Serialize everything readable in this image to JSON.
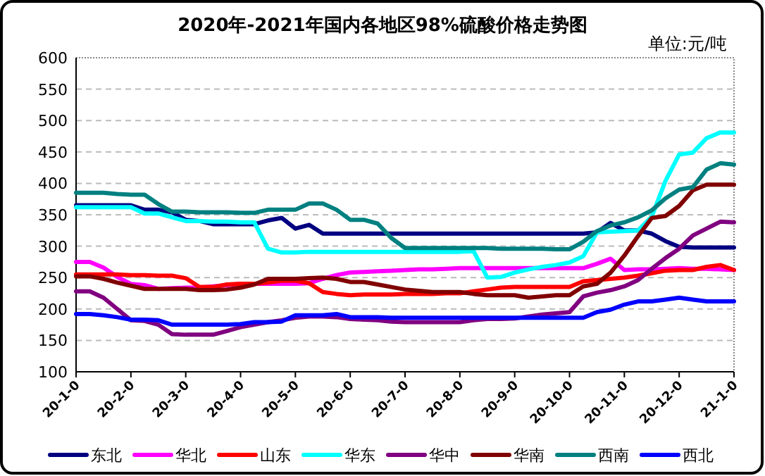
{
  "chart_data": {
    "type": "line",
    "title": "2020年-2021年国内各地区98%硫酸价格走势图",
    "annotations": [
      "单位:元/吨"
    ],
    "categories": [
      "20-1-0",
      null,
      null,
      null,
      "20-2-0",
      null,
      null,
      null,
      "20-3-0",
      null,
      null,
      null,
      "20-4-0",
      null,
      null,
      null,
      "20-5-0",
      null,
      null,
      null,
      "20-6-0",
      null,
      null,
      null,
      "20-7-0",
      null,
      null,
      null,
      "20-8-0",
      null,
      null,
      null,
      "20-9-0",
      null,
      null,
      null,
      "20-10-0",
      null,
      null,
      null,
      "20-11-0",
      null,
      null,
      null,
      "20-12-0",
      null,
      null,
      null,
      "21-1-0"
    ],
    "ylim": [
      100,
      600
    ],
    "yticks": [
      100,
      150,
      200,
      250,
      300,
      350,
      400,
      450,
      500,
      550,
      600
    ],
    "grid": "y",
    "legend": "bottom",
    "marker": "none",
    "line_style": "solid",
    "series": [
      {
        "name": "东北",
        "color": "#000080",
        "values": [
          365,
          365,
          365,
          365,
          365,
          358,
          358,
          354,
          342,
          340,
          335,
          335,
          335,
          335,
          341,
          345,
          328,
          334,
          320,
          320,
          320,
          320,
          320,
          320,
          320,
          320,
          320,
          320,
          320,
          320,
          320,
          320,
          320,
          320,
          320,
          320,
          320,
          320,
          322,
          337,
          325,
          325,
          320,
          308,
          299,
          298,
          298,
          298,
          298
        ]
      },
      {
        "name": "华北",
        "color": "#ff00ff",
        "values": [
          275,
          275,
          266,
          251,
          240,
          238,
          232,
          233,
          234,
          234,
          236,
          238,
          240,
          240,
          240,
          240,
          240,
          241,
          248,
          254,
          258,
          259,
          260,
          261,
          262,
          263,
          263,
          264,
          265,
          265,
          265,
          265,
          265,
          265,
          265,
          265,
          265,
          265,
          272,
          280,
          262,
          263,
          263,
          264,
          265,
          264,
          264,
          263,
          262
        ]
      },
      {
        "name": "山东",
        "color": "#ff0000",
        "values": [
          255,
          255,
          255,
          255,
          254,
          254,
          253,
          253,
          249,
          235,
          235,
          239,
          240,
          240,
          242,
          245,
          245,
          241,
          227,
          224,
          222,
          223,
          223,
          223,
          224,
          224,
          224,
          225,
          225,
          228,
          231,
          234,
          235,
          235,
          235,
          235,
          235,
          244,
          246,
          248,
          250,
          253,
          257,
          261,
          262,
          262,
          267,
          270,
          262
        ]
      },
      {
        "name": "华东",
        "color": "#00ffff",
        "values": [
          362,
          362,
          362,
          362,
          362,
          352,
          352,
          346,
          340,
          340,
          339,
          339,
          338,
          338,
          296,
          290,
          290,
          291,
          291,
          291,
          291,
          291,
          291,
          291,
          291,
          291,
          291,
          291,
          291,
          292,
          250,
          251,
          258,
          263,
          267,
          270,
          274,
          284,
          322,
          323,
          324,
          325,
          347,
          404,
          446,
          449,
          472,
          481,
          481
        ]
      },
      {
        "name": "华中",
        "color": "#800080",
        "values": [
          228,
          228,
          218,
          200,
          182,
          181,
          175,
          160,
          159,
          159,
          159,
          165,
          171,
          175,
          179,
          182,
          186,
          188,
          188,
          187,
          184,
          183,
          182,
          180,
          179,
          179,
          179,
          179,
          179,
          182,
          184,
          184,
          185,
          188,
          191,
          193,
          195,
          220,
          226,
          230,
          236,
          246,
          264,
          281,
          296,
          317,
          328,
          339,
          338
        ]
      },
      {
        "name": "华南",
        "color": "#800000",
        "values": [
          252,
          252,
          248,
          242,
          237,
          232,
          232,
          232,
          232,
          230,
          230,
          231,
          234,
          239,
          248,
          248,
          248,
          249,
          250,
          248,
          243,
          243,
          239,
          235,
          231,
          229,
          227,
          227,
          227,
          224,
          222,
          222,
          222,
          218,
          220,
          222,
          222,
          236,
          240,
          258,
          285,
          316,
          345,
          348,
          364,
          389,
          398,
          398,
          398
        ]
      },
      {
        "name": "西南",
        "color": "#008080",
        "values": [
          385,
          385,
          385,
          383,
          382,
          382,
          367,
          355,
          355,
          354,
          354,
          354,
          353,
          353,
          358,
          358,
          358,
          368,
          368,
          358,
          342,
          342,
          336,
          313,
          297,
          297,
          297,
          297,
          297,
          297,
          297,
          296,
          296,
          296,
          296,
          295,
          295,
          307,
          324,
          333,
          338,
          346,
          357,
          376,
          390,
          394,
          422,
          432,
          430
        ]
      },
      {
        "name": "西北",
        "color": "#0000ff",
        "values": [
          192,
          192,
          190,
          187,
          183,
          183,
          182,
          175,
          175,
          175,
          175,
          175,
          176,
          179,
          179,
          180,
          190,
          190,
          190,
          192,
          187,
          187,
          187,
          186,
          186,
          186,
          186,
          186,
          186,
          186,
          186,
          186,
          186,
          186,
          186,
          186,
          186,
          186,
          195,
          199,
          207,
          212,
          212,
          215,
          218,
          215,
          212,
          212,
          212
        ]
      }
    ]
  }
}
